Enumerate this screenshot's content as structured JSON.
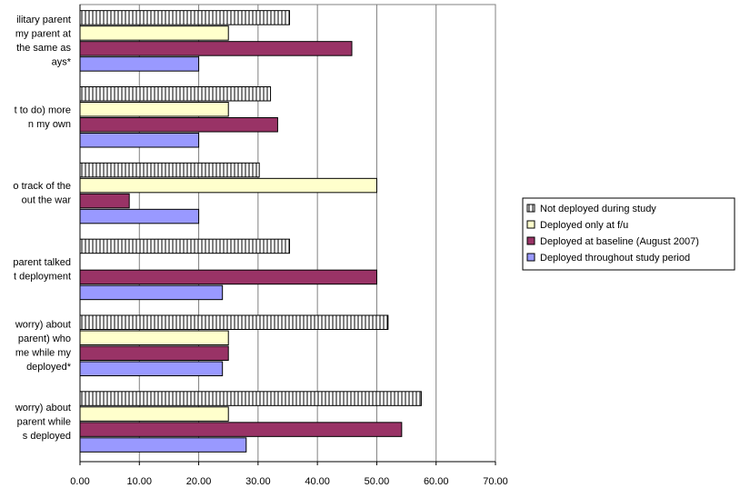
{
  "chart_data": {
    "type": "bar",
    "orientation": "horizontal",
    "categories": [
      [
        "ilitary parent",
        "my parent at",
        "the same as",
        "ays*"
      ],
      [
        "t to do) more",
        "n my own"
      ],
      [
        "o track of the",
        "out the war"
      ],
      [
        "parent talked",
        "t deployment"
      ],
      [
        "worry) about",
        "parent) who",
        "me while my",
        "deployed*"
      ],
      [
        "worry) about",
        "parent while",
        "s deployed"
      ]
    ],
    "series": [
      {
        "name": "Not deployed during study",
        "color": "#ffffff",
        "pattern": "vertical-stripes",
        "values": [
          35.3,
          32.1,
          30.2,
          35.3,
          51.9,
          57.5
        ]
      },
      {
        "name": "Deployed only at f/u",
        "color": "#ffffcc",
        "values": [
          25.0,
          25.0,
          50.0,
          null,
          25.0,
          25.0
        ]
      },
      {
        "name": "Deployed at baseline (August 2007)",
        "color": "#993366",
        "values": [
          45.8,
          33.3,
          8.3,
          50.0,
          25.0,
          54.2
        ]
      },
      {
        "name": "Deployed throughout study period",
        "color": "#9999ff",
        "values": [
          20.0,
          20.0,
          20.0,
          24.0,
          24.0,
          28.0
        ]
      }
    ],
    "xlim": [
      0,
      70
    ],
    "xticks": [
      "0.00",
      "10.00",
      "20.00",
      "30.00",
      "40.00",
      "50.00",
      "60.00",
      "70.00"
    ],
    "xtick_values": [
      0,
      10,
      20,
      30,
      40,
      50,
      60,
      70
    ],
    "grid": "vertical",
    "legend_position": "right"
  }
}
